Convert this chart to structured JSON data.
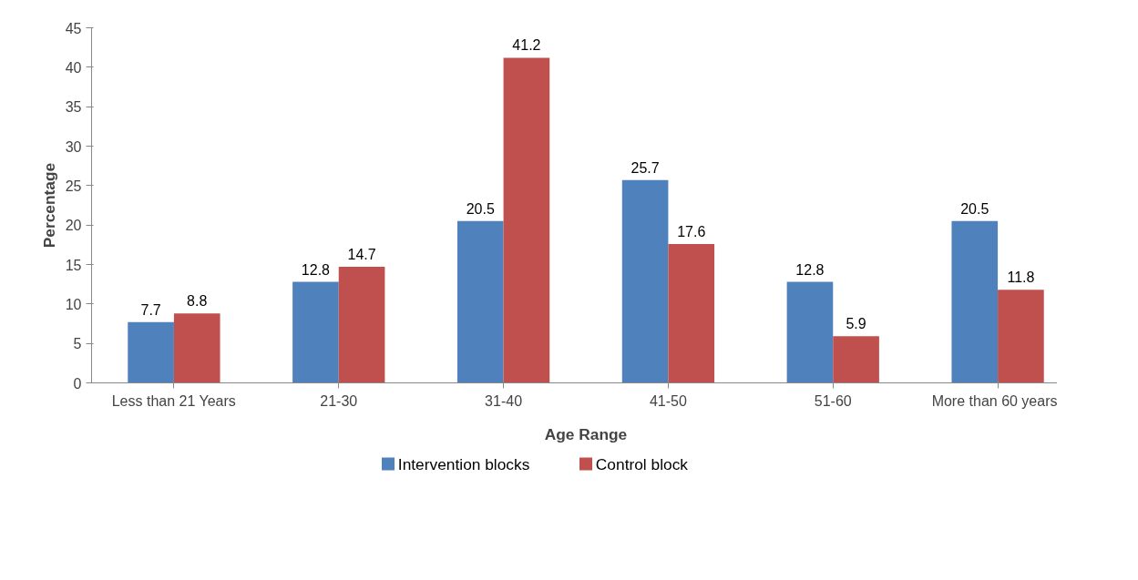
{
  "chart_data": {
    "type": "bar",
    "xlabel": "Age Range",
    "ylabel": "Percentage",
    "categories": [
      "Less than 21 Years",
      "21-30",
      "31-40",
      "41-50",
      "51-60",
      "More than 60 years"
    ],
    "series": [
      {
        "name": "Intervention blocks",
        "color": "#4f81bd",
        "values": [
          7.7,
          12.8,
          20.5,
          25.7,
          12.8,
          20.5
        ]
      },
      {
        "name": "Control block",
        "color": "#c0504d",
        "values": [
          8.8,
          14.7,
          41.2,
          17.6,
          5.9,
          11.8
        ]
      }
    ],
    "ylim": [
      0,
      45
    ],
    "yticks": [
      0,
      5,
      10,
      15,
      20,
      25,
      30,
      35,
      40,
      45
    ],
    "grid": false,
    "legend": "bottom",
    "data_labels": true
  }
}
